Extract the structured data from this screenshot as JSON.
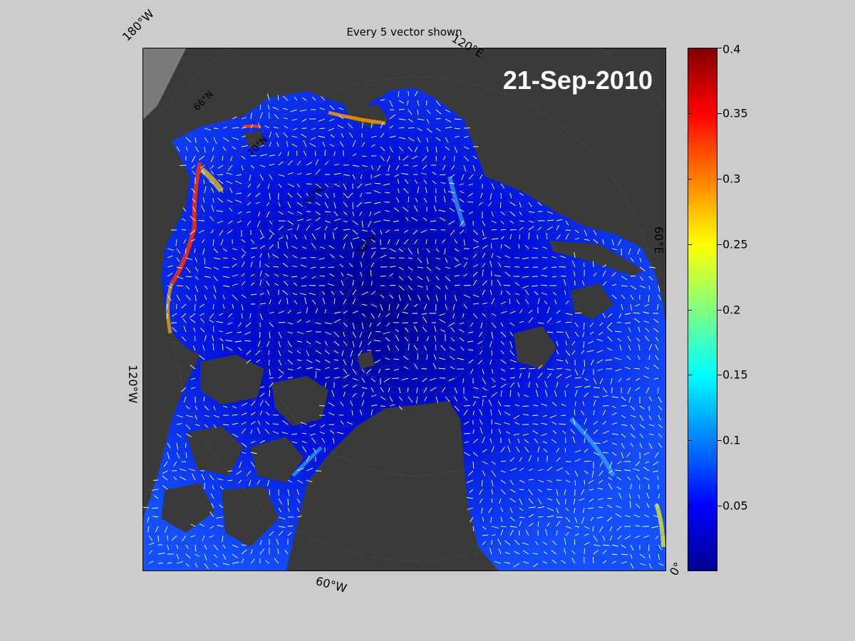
{
  "title": "Every 5 vector shown",
  "date_label": "21-Sep-2010",
  "longitude_labels": {
    "lon_180w": "180°W",
    "lon_120e": "120°E",
    "lon_60e": "60°E",
    "lon_120w": "120°W",
    "lon_60w": "60°W",
    "lon_0": "0°"
  },
  "latitude_labels": [
    "66°N",
    "70°N",
    "75°N",
    "80°N"
  ],
  "colorbar": {
    "min": 0,
    "max": 0.4,
    "ticks": [
      "0.4",
      "0.35",
      "0.3",
      "0.25",
      "0.2",
      "0.15",
      "0.1",
      "0.05"
    ],
    "colormap": "jet"
  },
  "colors": {
    "background": "#cccccc",
    "land": "#3a3a3a",
    "ocean_low": "#0000c8",
    "ocean_mid": "#1a4cff",
    "vectors": "#ffffff"
  }
}
